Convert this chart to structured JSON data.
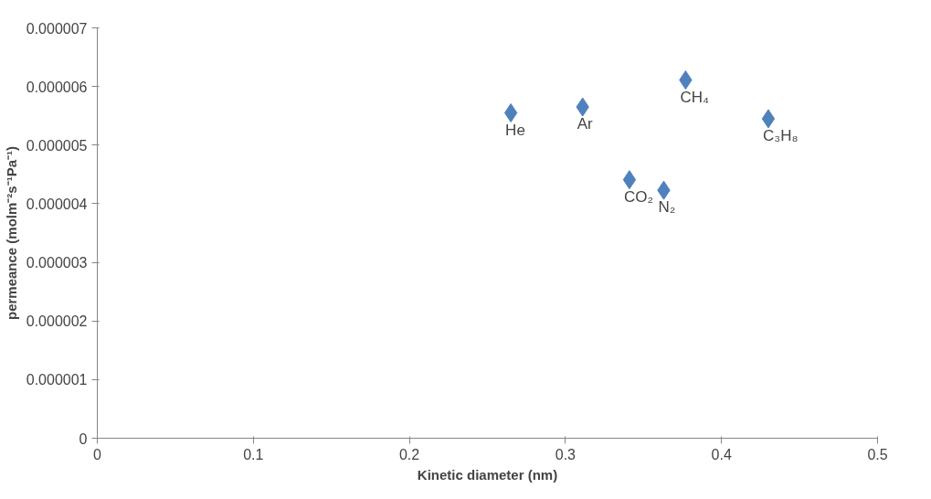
{
  "chart_data": {
    "type": "scatter",
    "xlabel": "Kinetic diameter (nm)",
    "ylabel": "permeance (molm⁻²s⁻¹Pa⁻¹)",
    "x": [
      0.265,
      0.311,
      0.377,
      0.43,
      0.341,
      0.363
    ],
    "series": [
      {
        "color": "#4f81bd",
        "values": [
          5.55e-06,
          5.65e-06,
          6.11e-06,
          5.45e-06,
          4.41e-06,
          4.23e-06
        ]
      }
    ],
    "marker": "diamond",
    "grid": false,
    "xlim": [
      0,
      0.5
    ],
    "xticks": [
      0,
      0.1,
      0.2,
      0.3,
      0.4,
      0.5
    ],
    "ylim": [
      0,
      7e-06
    ],
    "yticks": [
      0,
      {
        "value": 1e-06,
        "label": "0.000001"
      },
      {
        "value": 2e-06,
        "label": "0.000002"
      },
      {
        "value": 3e-06,
        "label": "0.000003"
      },
      {
        "value": 4e-06,
        "label": "0.000004"
      },
      {
        "value": 5e-06,
        "label": "0.000005"
      },
      {
        "value": 6e-06,
        "label": "0.000006"
      },
      {
        "value": 7e-06,
        "label": "0.000007"
      }
    ],
    "annotations": [
      {
        "text": "He",
        "x": 0.265,
        "y": 5.55e-06
      },
      {
        "text": "Ar",
        "x": 0.311,
        "y": 5.65e-06
      },
      {
        "text": "CH₄",
        "x": 0.377,
        "y": 6.11e-06
      },
      {
        "text": "C₃H₈",
        "x": 0.43,
        "y": 5.45e-06
      },
      {
        "text": "CO₂",
        "x": 0.341,
        "y": 4.41e-06
      },
      {
        "text": "N₂",
        "x": 0.363,
        "y": 4.23e-06
      }
    ]
  }
}
